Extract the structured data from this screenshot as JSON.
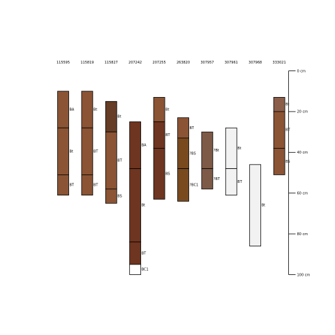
{
  "chart_data": {
    "type": "soil-profile-sketch",
    "title": "",
    "depth_axis": {
      "ylim": [
        0,
        100
      ],
      "ticks": [
        0,
        20,
        40,
        60,
        80,
        100
      ],
      "tick_labels": [
        "0 cm",
        "20 cm",
        "40 cm",
        "60 cm",
        "80 cm",
        "100 cm"
      ]
    },
    "profiles": [
      {
        "id": "115595",
        "horizons": [
          {
            "name": "BA",
            "top": 10,
            "bottom": 28,
            "color": "#8b5434"
          },
          {
            "name": "Bt",
            "top": 28,
            "bottom": 51,
            "color": "#8b5434"
          },
          {
            "name": "BT",
            "top": 51,
            "bottom": 61,
            "color": "#8b5434"
          }
        ]
      },
      {
        "id": "115819",
        "horizons": [
          {
            "name": "Bt",
            "top": 10,
            "bottom": 28,
            "color": "#8b5434"
          },
          {
            "name": "BT",
            "top": 28,
            "bottom": 51,
            "color": "#8b5434"
          },
          {
            "name": "BT",
            "top": 51,
            "bottom": 61,
            "color": "#8b5434"
          }
        ]
      },
      {
        "id": "115827",
        "horizons": [
          {
            "name": "Bt",
            "top": 15,
            "bottom": 30,
            "color": "#663d26"
          },
          {
            "name": "BT",
            "top": 30,
            "bottom": 58,
            "color": "#8b5434"
          },
          {
            "name": "BS",
            "top": 58,
            "bottom": 65,
            "color": "#8b5434"
          }
        ]
      },
      {
        "id": "207242",
        "horizons": [
          {
            "name": "BA",
            "top": 25,
            "bottom": 48,
            "color": "#6e3520"
          },
          {
            "name": "Bt",
            "top": 48,
            "bottom": 84,
            "color": "#6e3520"
          },
          {
            "name": "BT",
            "top": 84,
            "bottom": 95,
            "color": "#6e3520"
          },
          {
            "name": "BC1",
            "top": 95,
            "bottom": 100,
            "color": "#ffffff"
          }
        ]
      },
      {
        "id": "207255",
        "horizons": [
          {
            "name": "Bt",
            "top": 13,
            "bottom": 25,
            "color": "#8b5434"
          },
          {
            "name": "BT",
            "top": 25,
            "bottom": 38,
            "color": "#6e3520"
          },
          {
            "name": "BS",
            "top": 38,
            "bottom": 63,
            "color": "#6e3520"
          }
        ]
      },
      {
        "id": "263820",
        "horizons": [
          {
            "name": "BT",
            "top": 23,
            "bottom": 33,
            "color": "#8b5434"
          },
          {
            "name": "?BS",
            "top": 33,
            "bottom": 48,
            "color": "#7a4a1f"
          },
          {
            "name": "?BC1",
            "top": 48,
            "bottom": 64,
            "color": "#7a4a1f"
          }
        ]
      },
      {
        "id": "307957",
        "horizons": [
          {
            "name": "?Bt",
            "top": 30,
            "bottom": 48,
            "color": "#7d5a47"
          },
          {
            "name": "?BT",
            "top": 48,
            "bottom": 58,
            "color": "#7d5a47"
          }
        ]
      },
      {
        "id": "307961",
        "horizons": [
          {
            "name": "Bt",
            "top": 28,
            "bottom": 48,
            "color": "#f2f2f2"
          },
          {
            "name": "BT",
            "top": 48,
            "bottom": 61,
            "color": "#f2f2f2"
          }
        ]
      },
      {
        "id": "307968",
        "horizons": [
          {
            "name": "Bt",
            "top": 46,
            "bottom": 86,
            "color": "#f2f2f2"
          }
        ]
      },
      {
        "id": "333021",
        "horizons": [
          {
            "name": "Bt",
            "top": 13,
            "bottom": 20,
            "color": "#8b5e4a"
          },
          {
            "name": "BT",
            "top": 20,
            "bottom": 38,
            "color": "#8b5434"
          },
          {
            "name": "BS",
            "top": 38,
            "bottom": 51,
            "color": "#8b5434"
          }
        ]
      }
    ]
  }
}
